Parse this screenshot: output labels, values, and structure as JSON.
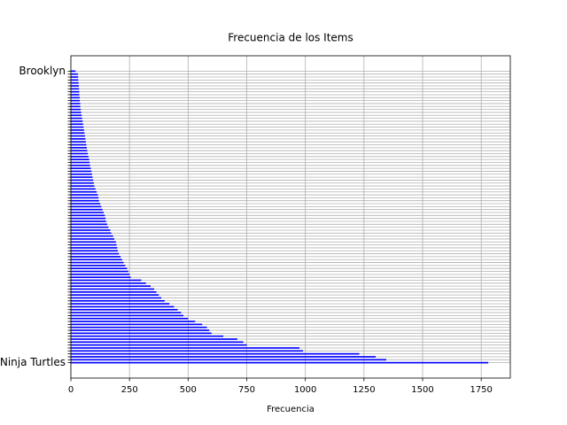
{
  "chart_data": {
    "type": "barh",
    "title": "Frecuencia de los Items",
    "x_label": "Frecuencia",
    "color": "#0000ff",
    "grid": true,
    "categories": [
      "Ninja Turtles",
      null,
      null,
      null,
      null,
      null,
      null,
      null,
      null,
      null,
      null,
      null,
      null,
      null,
      null,
      null,
      null,
      null,
      null,
      null,
      null,
      null,
      null,
      null,
      null,
      null,
      null,
      null,
      null,
      null,
      null,
      null,
      null,
      null,
      null,
      null,
      null,
      null,
      null,
      null,
      null,
      null,
      null,
      null,
      null,
      null,
      null,
      null,
      null,
      null,
      null,
      null,
      null,
      null,
      null,
      null,
      null,
      null,
      null,
      null,
      null,
      null,
      null,
      null,
      null,
      null,
      null,
      null,
      null,
      null,
      null,
      null,
      null,
      null,
      null,
      null,
      null,
      null,
      null,
      null,
      null,
      null,
      null,
      null,
      null,
      null,
      null,
      null,
      null,
      null,
      null,
      null,
      null,
      null,
      null,
      null,
      null,
      null,
      null,
      "Brooklyn"
    ],
    "values": [
      1780,
      1345,
      1300,
      1230,
      990,
      975,
      750,
      735,
      710,
      650,
      600,
      590,
      580,
      560,
      530,
      500,
      480,
      470,
      455,
      440,
      420,
      400,
      385,
      375,
      365,
      355,
      340,
      320,
      300,
      255,
      250,
      245,
      240,
      232,
      225,
      218,
      212,
      205,
      200,
      198,
      195,
      192,
      185,
      180,
      172,
      168,
      160,
      155,
      150,
      148,
      145,
      140,
      135,
      130,
      125,
      120,
      118,
      115,
      110,
      105,
      100,
      98,
      95,
      92,
      90,
      88,
      85,
      82,
      80,
      78,
      75,
      72,
      70,
      68,
      66,
      64,
      62,
      60,
      58,
      56,
      54,
      52,
      50,
      48,
      46,
      44,
      42,
      40,
      40,
      38,
      38,
      36,
      36,
      35,
      34,
      33,
      32,
      31,
      30,
      20
    ],
    "xlim": [
      0,
      1874
    ],
    "xticks": [
      0,
      250,
      500,
      750,
      1000,
      1250,
      1500,
      1750
    ]
  }
}
